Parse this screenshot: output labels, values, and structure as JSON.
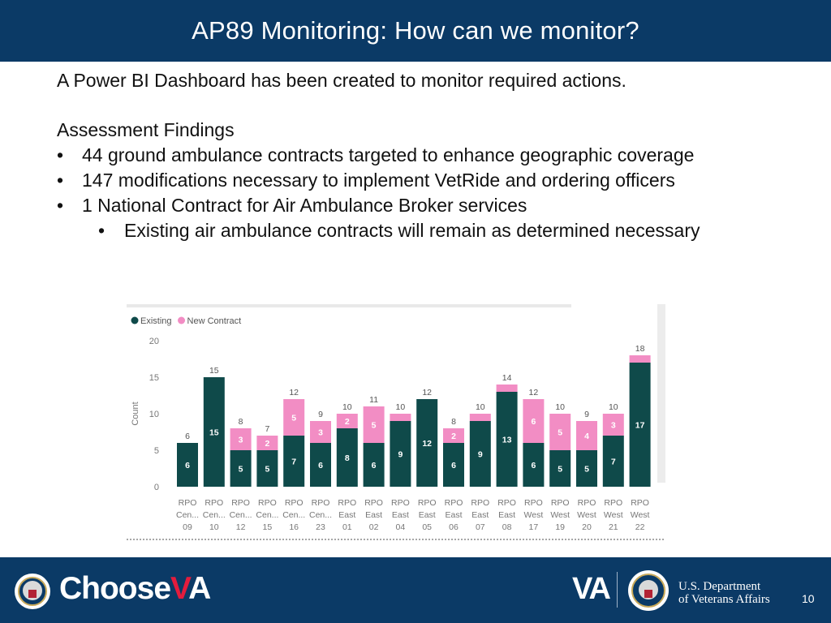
{
  "header": {
    "title": "AP89 Monitoring: How can we monitor?"
  },
  "body": {
    "intro": "A Power BI Dashboard has been created to monitor required actions.",
    "section_heading": "Assessment Findings",
    "bullet_char": "•",
    "bullets": [
      "44 ground ambulance contracts targeted to enhance geographic coverage",
      "147 modifications necessary to implement VetRide and ordering officers",
      "1 National Contract for Air Ambulance Broker services"
    ],
    "sub_bullets": [
      "Existing air ambulance contracts will remain as determined necessary"
    ]
  },
  "chart_data": {
    "type": "bar",
    "stacked": true,
    "ylabel": "Count",
    "ylim": [
      0,
      20
    ],
    "yticks": [
      0,
      5,
      10,
      15,
      20
    ],
    "categories": [
      [
        "RPO",
        "Cen...",
        "09"
      ],
      [
        "RPO",
        "Cen...",
        "10"
      ],
      [
        "RPO",
        "Cen...",
        "12"
      ],
      [
        "RPO",
        "Cen...",
        "15"
      ],
      [
        "RPO",
        "Cen...",
        "16"
      ],
      [
        "RPO",
        "Cen...",
        "23"
      ],
      [
        "RPO",
        "East",
        "01"
      ],
      [
        "RPO",
        "East",
        "02"
      ],
      [
        "RPO",
        "East",
        "04"
      ],
      [
        "RPO",
        "East",
        "05"
      ],
      [
        "RPO",
        "East",
        "06"
      ],
      [
        "RPO",
        "East",
        "07"
      ],
      [
        "RPO",
        "East",
        "08"
      ],
      [
        "RPO",
        "West",
        "17"
      ],
      [
        "RPO",
        "West",
        "19"
      ],
      [
        "RPO",
        "West",
        "20"
      ],
      [
        "RPO",
        "West",
        "21"
      ],
      [
        "RPO",
        "West",
        "22"
      ]
    ],
    "series": [
      {
        "name": "Existing",
        "color": "#0f4a4a",
        "values": [
          6,
          15,
          5,
          5,
          7,
          6,
          8,
          6,
          9,
          12,
          6,
          9,
          13,
          6,
          5,
          5,
          7,
          17
        ]
      },
      {
        "name": "New Contract",
        "color": "#f28dc4",
        "values": [
          0,
          0,
          3,
          2,
          5,
          3,
          2,
          5,
          1,
          0,
          2,
          1,
          1,
          6,
          5,
          4,
          3,
          1
        ]
      }
    ],
    "segment_labels": {
      "Existing": [
        "6",
        "15",
        "5",
        "5",
        "7",
        "6",
        "8",
        "6",
        "9",
        "12",
        "6",
        "9",
        "13",
        "6",
        "5",
        "5",
        "7",
        "17"
      ],
      "New Contract": [
        "",
        "",
        "3",
        "2",
        "5",
        "3",
        "2",
        "5",
        "",
        "",
        "2",
        "",
        "",
        "6",
        "5",
        "4",
        "3",
        ""
      ]
    },
    "totals": [
      6,
      15,
      8,
      7,
      12,
      9,
      10,
      11,
      10,
      12,
      8,
      10,
      14,
      12,
      10,
      9,
      10,
      18
    ],
    "legend": [
      "Existing",
      "New Contract"
    ]
  },
  "footer": {
    "choose_text": "Choose",
    "choose_va_v": "V",
    "choose_va_a": "A",
    "va_logo": "VA",
    "dept_line1": "U.S. Department",
    "dept_line2": "of Veterans Affairs",
    "page_number": "10"
  }
}
